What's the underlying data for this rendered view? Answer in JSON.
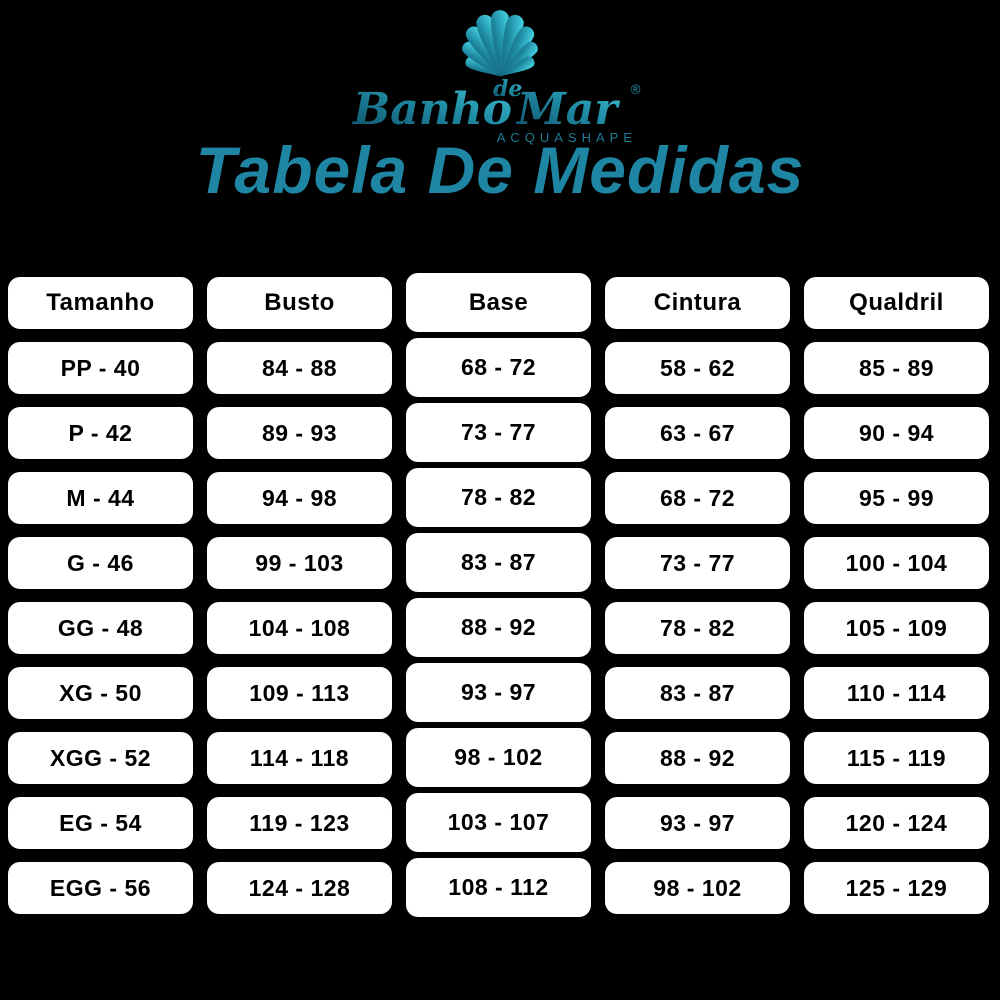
{
  "colors": {
    "background": "#000000",
    "accent_teal": "#1e85a2",
    "logo_gradient_dark": "#0e4f68",
    "logo_gradient_mid": "#1f8ba3",
    "logo_gradient_bright": "#49dbe8",
    "subbrand_teal": "#1f7b96",
    "cell_background": "#ffffff",
    "cell_text": "#000000"
  },
  "logo": {
    "icon": "scallop-shell-icon",
    "brand_banho": "Banho",
    "brand_de": "de",
    "brand_mar": "Mar",
    "registered_mark": "®",
    "subbrand": "ACQUASHAPE"
  },
  "title": "Tabela De Medidas",
  "table": {
    "columns": [
      "Tamanho",
      "Busto",
      "Base",
      "Cintura",
      "Qualdril"
    ],
    "rows": [
      [
        "PP - 40",
        "84 - 88",
        "68 - 72",
        "58 - 62",
        "85 - 89"
      ],
      [
        "P - 42",
        "89 - 93",
        "73 - 77",
        "63 - 67",
        "90 - 94"
      ],
      [
        "M - 44",
        "94 - 98",
        "78 - 82",
        "68 - 72",
        "95 - 99"
      ],
      [
        "G - 46",
        "99 - 103",
        "83 - 87",
        "73 - 77",
        "100 - 104"
      ],
      [
        "GG - 48",
        "104 - 108",
        "88 - 92",
        "78 - 82",
        "105 - 109"
      ],
      [
        "XG - 50",
        "109 - 113",
        "93 - 97",
        "83 - 87",
        "110 - 114"
      ],
      [
        "XGG - 52",
        "114 - 118",
        "98 - 102",
        "88 - 92",
        "115 - 119"
      ],
      [
        "EG - 54",
        "119 - 123",
        "103 - 107",
        "93 - 97",
        "120 - 124"
      ],
      [
        "EGG - 56",
        "124 - 128",
        "108 - 112",
        "98 - 102",
        "125 - 129"
      ]
    ]
  },
  "chart_data": {
    "type": "table",
    "title": "Tabela De Medidas",
    "columns": [
      "Tamanho",
      "Busto",
      "Base",
      "Cintura",
      "Qualdril"
    ],
    "rows": [
      [
        "PP - 40",
        "84 - 88",
        "68 - 72",
        "58 - 62",
        "85 - 89"
      ],
      [
        "P - 42",
        "89 - 93",
        "73 - 77",
        "63 - 67",
        "90 - 94"
      ],
      [
        "M - 44",
        "94 - 98",
        "78 - 82",
        "68 - 72",
        "95 - 99"
      ],
      [
        "G - 46",
        "99 - 103",
        "83 - 87",
        "73 - 77",
        "100 - 104"
      ],
      [
        "GG - 48",
        "104 - 108",
        "88 - 92",
        "78 - 82",
        "105 - 109"
      ],
      [
        "XG - 50",
        "109 - 113",
        "93 - 97",
        "83 - 87",
        "110 - 114"
      ],
      [
        "XGG - 52",
        "114 - 118",
        "98 - 102",
        "88 - 92",
        "115 - 119"
      ],
      [
        "EG - 54",
        "119 - 123",
        "103 - 107",
        "93 - 97",
        "120 - 124"
      ],
      [
        "EGG - 56",
        "124 - 128",
        "108 - 112",
        "98 - 102",
        "125 - 129"
      ]
    ]
  }
}
